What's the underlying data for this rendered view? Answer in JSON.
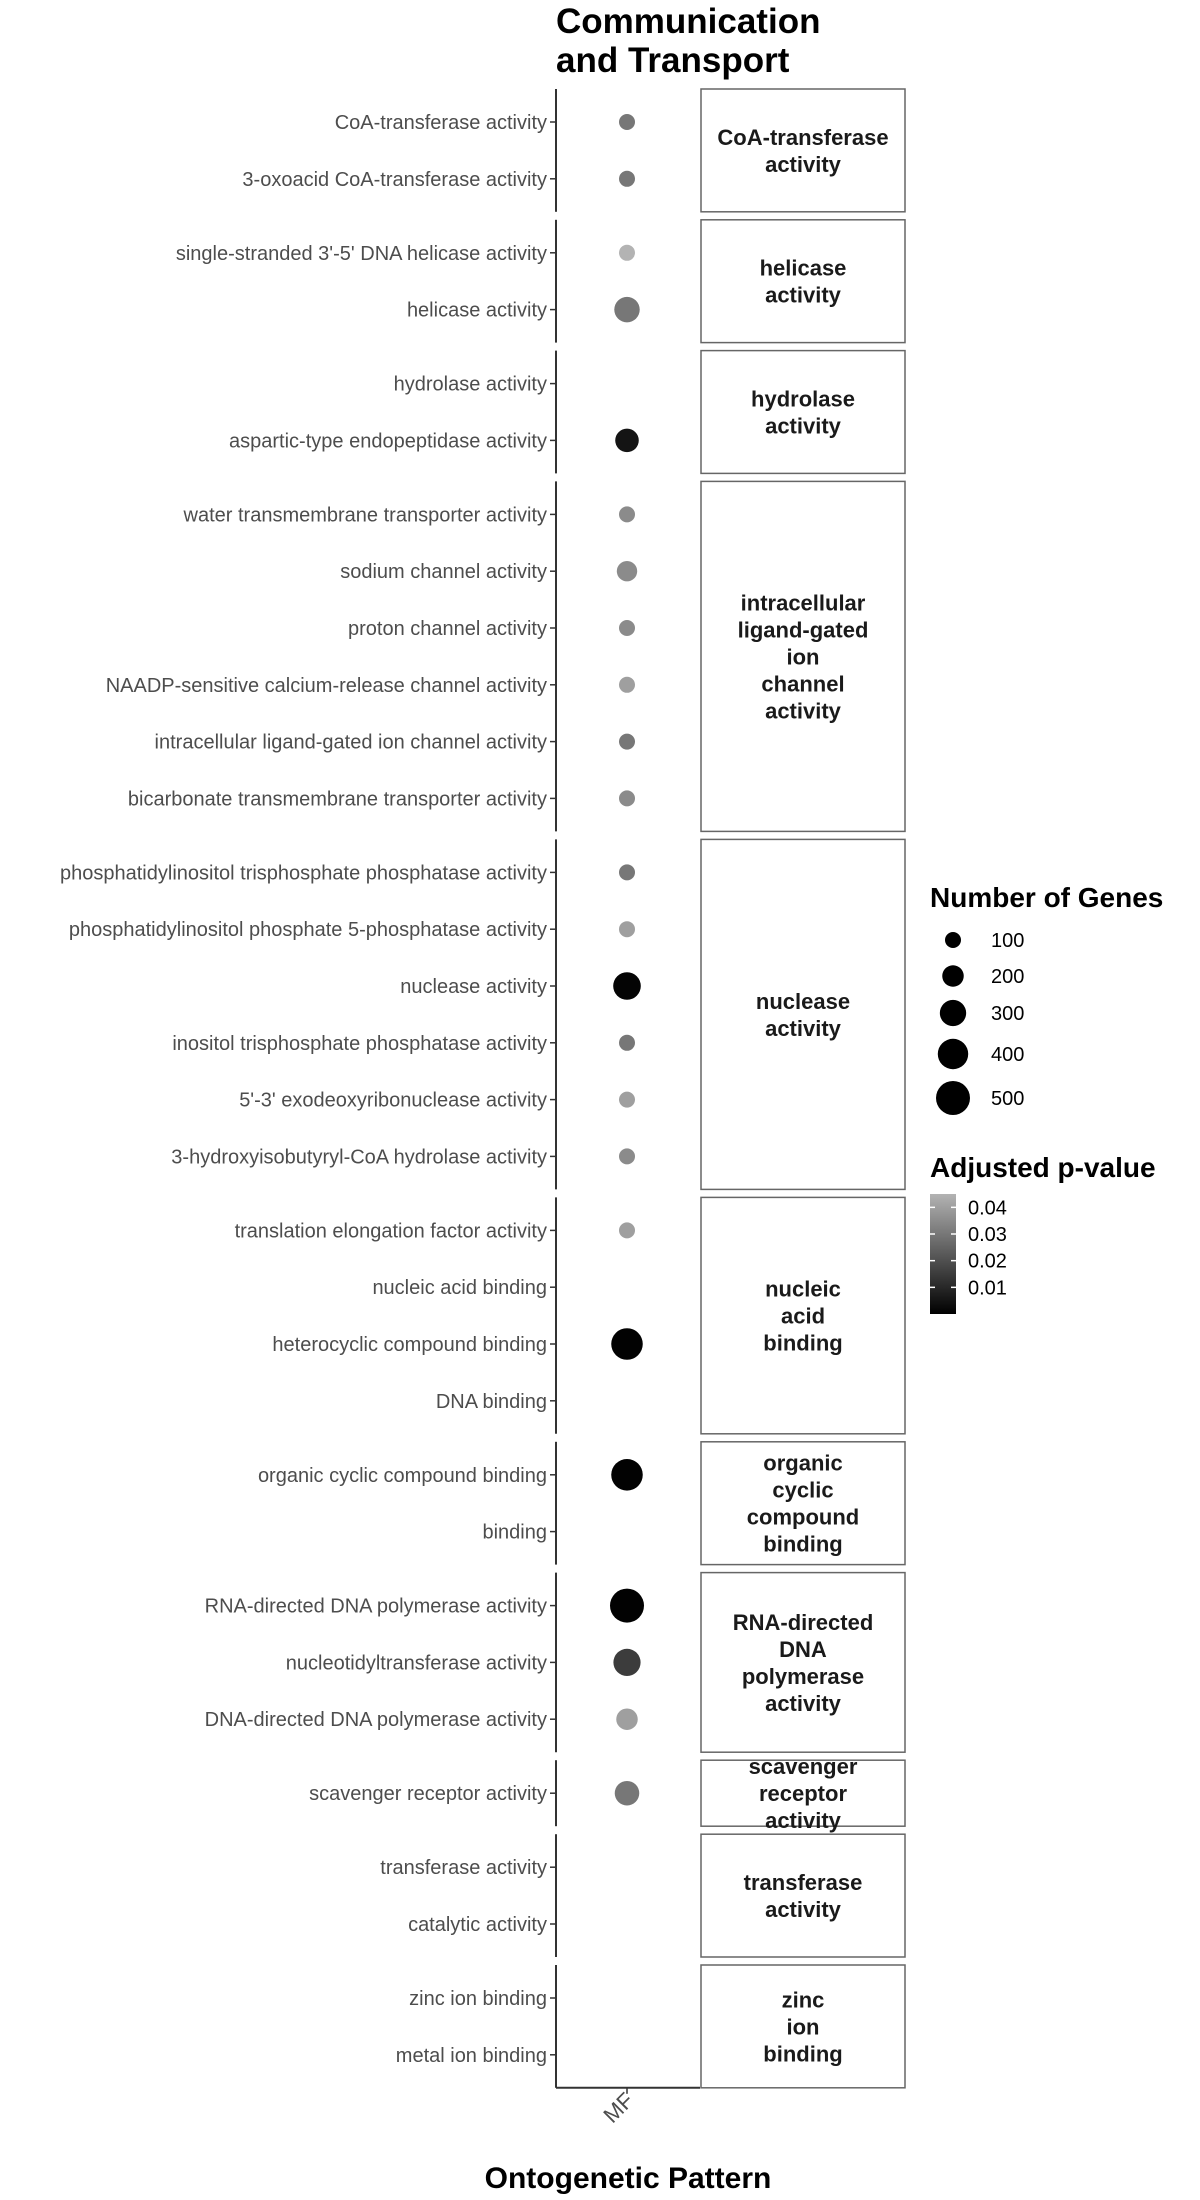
{
  "chart_data": {
    "type": "scatter",
    "title_lines": [
      "Communication",
      "and Transport"
    ],
    "xlabel": "Ontogenetic Pattern",
    "x_categories": [
      "MF"
    ],
    "facets": [
      {
        "strip": [
          "CoA-transferase",
          "activity"
        ],
        "rows": [
          {
            "term": "CoA-transferase activity",
            "genes": 60,
            "padj": 0.03
          },
          {
            "term": "3-oxoacid CoA-transferase activity",
            "genes": 60,
            "padj": 0.03
          }
        ]
      },
      {
        "strip": [
          "helicase",
          "activity"
        ],
        "rows": [
          {
            "term": "single-stranded 3'-5' DNA helicase activity",
            "genes": 70,
            "padj": 0.045
          },
          {
            "term": "helicase activity",
            "genes": 280,
            "padj": 0.03
          }
        ]
      },
      {
        "strip": [
          "hydrolase",
          "activity"
        ],
        "rows": [
          {
            "term": "hydrolase activity",
            "genes": null,
            "padj": null
          },
          {
            "term": "aspartic-type endopeptidase activity",
            "genes": 240,
            "padj": 0.005
          }
        ]
      },
      {
        "strip": [
          "intracellular",
          "ligand-gated",
          "ion",
          "channel",
          "activity"
        ],
        "rows": [
          {
            "term": "water transmembrane transporter activity",
            "genes": 60,
            "padj": 0.035
          },
          {
            "term": "sodium channel activity",
            "genes": 180,
            "padj": 0.035
          },
          {
            "term": "proton channel activity",
            "genes": 60,
            "padj": 0.035
          },
          {
            "term": "NAADP-sensitive calcium-release channel activity",
            "genes": 60,
            "padj": 0.04
          },
          {
            "term": "intracellular ligand-gated ion channel activity",
            "genes": 50,
            "padj": 0.03
          },
          {
            "term": "bicarbonate transmembrane transporter activity",
            "genes": 60,
            "padj": 0.035
          }
        ]
      },
      {
        "strip": [
          "nuclease",
          "activity"
        ],
        "rows": [
          {
            "term": "phosphatidylinositol trisphosphate phosphatase activity",
            "genes": 50,
            "padj": 0.03
          },
          {
            "term": "phosphatidylinositol phosphate 5-phosphatase activity",
            "genes": 60,
            "padj": 0.04
          },
          {
            "term": "nuclease activity",
            "genes": 330,
            "padj": 0.001
          },
          {
            "term": "inositol trisphosphate phosphatase activity",
            "genes": 50,
            "padj": 0.03
          },
          {
            "term": "5'-3' exodeoxyribonuclease activity",
            "genes": 60,
            "padj": 0.04
          },
          {
            "term": "3-hydroxyisobutyryl-CoA hydrolase activity",
            "genes": 60,
            "padj": 0.035
          }
        ]
      },
      {
        "strip": [
          "nucleic",
          "acid",
          "binding"
        ],
        "rows": [
          {
            "term": "translation elongation factor activity",
            "genes": 90,
            "padj": 0.04
          },
          {
            "term": "nucleic acid binding",
            "genes": null,
            "padj": null
          },
          {
            "term": "heterocyclic compound binding",
            "genes": 430,
            "padj": 0.0005
          },
          {
            "term": "DNA binding",
            "genes": null,
            "padj": null
          }
        ]
      },
      {
        "strip": [
          "organic",
          "cyclic",
          "compound",
          "binding"
        ],
        "rows": [
          {
            "term": "organic cyclic compound binding",
            "genes": 430,
            "padj": 0.0005
          },
          {
            "term": "binding",
            "genes": null,
            "padj": null
          }
        ]
      },
      {
        "strip": [
          "RNA-directed",
          "DNA",
          "polymerase",
          "activity"
        ],
        "rows": [
          {
            "term": "RNA-directed DNA polymerase activity",
            "genes": 500,
            "padj": 0.0005
          },
          {
            "term": "nucleotidyltransferase activity",
            "genes": 320,
            "padj": 0.015
          },
          {
            "term": "DNA-directed DNA polymerase activity",
            "genes": 200,
            "padj": 0.04
          }
        ]
      },
      {
        "strip": [
          "scavenger",
          "receptor",
          "activity"
        ],
        "rows": [
          {
            "term": "scavenger receptor activity",
            "genes": 260,
            "padj": 0.03
          }
        ]
      },
      {
        "strip": [
          "transferase",
          "activity"
        ],
        "rows": [
          {
            "term": "transferase activity",
            "genes": null,
            "padj": null
          },
          {
            "term": "catalytic activity",
            "genes": null,
            "padj": null
          }
        ]
      },
      {
        "strip": [
          "zinc",
          "ion",
          "binding"
        ],
        "rows": [
          {
            "term": "zinc ion binding",
            "genes": null,
            "padj": null
          },
          {
            "term": "metal ion binding",
            "genes": null,
            "padj": null
          }
        ]
      }
    ],
    "legend_size": {
      "title": "Number of Genes",
      "values": [
        100,
        200,
        300,
        400,
        500
      ]
    },
    "legend_color": {
      "title": "Adjusted p-value",
      "ticks": [
        0.04,
        0.03,
        0.02,
        0.01
      ],
      "range": [
        0,
        0.045
      ],
      "low_color": "#000000",
      "high_color": "#b3b3b3"
    }
  }
}
